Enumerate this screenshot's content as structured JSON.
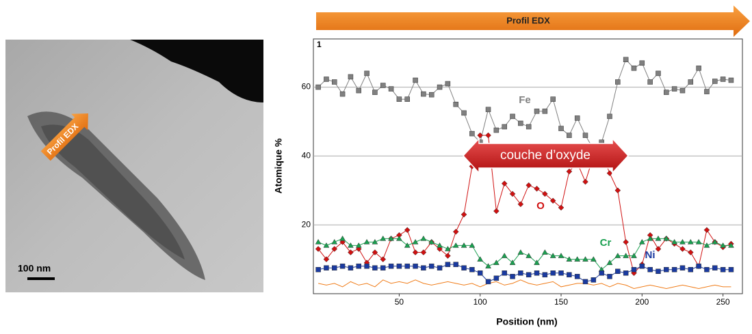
{
  "image": {
    "arrow_label": "Profil EDX",
    "scale_bar": "100 nm"
  },
  "chart_data": {
    "type": "line",
    "title": "Profil EDX",
    "panel_label": "1",
    "annotation": "couche d’oxyde",
    "xlabel": "Position (nm)",
    "ylabel": "Atomique %",
    "xlim": [
      -3,
      262
    ],
    "ylim": [
      0,
      74
    ],
    "xticks": [
      50,
      100,
      150,
      200,
      250
    ],
    "yticks": [
      20,
      40,
      60
    ],
    "grid": true,
    "x": [
      0,
      5,
      10,
      15,
      20,
      25,
      30,
      35,
      40,
      45,
      50,
      55,
      60,
      65,
      70,
      75,
      80,
      85,
      90,
      95,
      100,
      105,
      110,
      115,
      120,
      125,
      130,
      135,
      140,
      145,
      150,
      155,
      160,
      165,
      170,
      175,
      180,
      185,
      190,
      195,
      200,
      205,
      210,
      215,
      220,
      225,
      230,
      235,
      240,
      245,
      250,
      255
    ],
    "series": [
      {
        "color": "#f07d1a",
        "values": [
          3,
          2.5,
          3,
          2,
          3.5,
          2.5,
          3,
          2,
          4,
          3,
          3.5,
          3,
          4,
          3,
          2.5,
          3,
          3.5,
          3,
          2.5,
          3,
          2,
          3,
          3.5,
          2.5,
          3,
          4,
          3,
          2.5,
          3,
          3.5,
          2,
          2.5,
          3,
          3,
          2.5,
          3,
          2,
          3,
          2.5,
          1.5,
          2,
          2.5,
          2,
          1.5,
          2,
          2.5,
          2,
          1.5,
          2,
          2.5,
          2,
          2
        ]
      },
      {
        "name": "Fe",
        "color": "#808080",
        "marker": "square",
        "values": [
          60,
          62.3,
          61.5,
          58,
          63,
          59,
          64,
          58.5,
          60.5,
          59.5,
          56.5,
          56.5,
          62,
          58,
          57.8,
          60,
          61,
          55,
          52.5,
          46.5,
          44,
          53.5,
          47.5,
          48.5,
          51.5,
          49.5,
          48.5,
          53,
          53,
          56.5,
          48,
          46,
          51,
          46,
          42,
          44,
          51.5,
          61.5,
          68,
          65.5,
          67,
          61.5,
          64,
          58.5,
          59.5,
          59,
          61.5,
          65.5,
          58.7,
          61.7,
          62.3,
          62
        ]
      },
      {
        "name": "O",
        "color": "#d01010",
        "marker": "diamond",
        "values": [
          13,
          10,
          13,
          15,
          12,
          13,
          9,
          12,
          10,
          16,
          17,
          18.5,
          12,
          12,
          15,
          13,
          11,
          18,
          23,
          37,
          46,
          46,
          24,
          32,
          29,
          26,
          31.5,
          30.5,
          29,
          27,
          25,
          35.5,
          38,
          32.5,
          40,
          41,
          35,
          30,
          15,
          6,
          8.5,
          17,
          13,
          16,
          14.5,
          13,
          12,
          8,
          18.5,
          15,
          13.5,
          14.5
        ]
      },
      {
        "name": "Cr",
        "color": "#1aa050",
        "marker": "triangle",
        "values": [
          15,
          14,
          15,
          16,
          14,
          14,
          15,
          15,
          16,
          16,
          16,
          14,
          15,
          16,
          15,
          14,
          13,
          14,
          14,
          14,
          10,
          8,
          9,
          11,
          9,
          12,
          11,
          9,
          12,
          11,
          11,
          10,
          10,
          10,
          10,
          7,
          9,
          11,
          11,
          11,
          15,
          16,
          16,
          16,
          15,
          15,
          15,
          15,
          14,
          15,
          14,
          14
        ]
      },
      {
        "name": "Ni",
        "color": "#1a3aa0",
        "marker": "square",
        "values": [
          7,
          7.5,
          7.5,
          8,
          7.5,
          8,
          8,
          7.5,
          7.5,
          8,
          8,
          8,
          8,
          7.5,
          8,
          7.5,
          8.5,
          8.5,
          7.5,
          7,
          6,
          3.5,
          4.5,
          6,
          5,
          6,
          5.5,
          6,
          5.5,
          6,
          6,
          5.5,
          5,
          3.5,
          4,
          6,
          5,
          6.5,
          6,
          7,
          8,
          7,
          6.5,
          7,
          7,
          7.5,
          7,
          8,
          7,
          7.5,
          7,
          7
        ]
      }
    ]
  }
}
